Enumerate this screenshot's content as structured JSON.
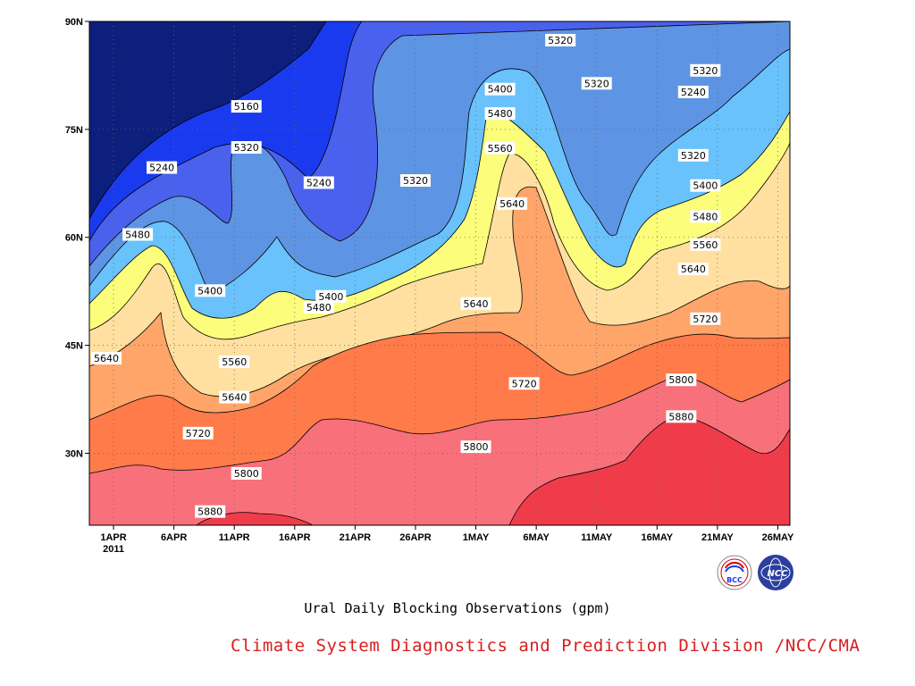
{
  "chart_data": {
    "type": "heatmap",
    "title": "Ural Daily Blocking Observations (gpm)",
    "xlabel": "",
    "ylabel": "",
    "x_ticks": [
      "1APR",
      "6APR",
      "11APR",
      "16APR",
      "21APR",
      "26APR",
      "1MAY",
      "6MAY",
      "11MAY",
      "16MAY",
      "21MAY",
      "26MAY"
    ],
    "x_year_label": "2011",
    "x_range": [
      "2011-03-30",
      "2011-05-27"
    ],
    "y_ticks": [
      "30N",
      "45N",
      "60N",
      "75N",
      "90N"
    ],
    "y_range": [
      20,
      90
    ],
    "grid": true,
    "contour_levels": [
      5160,
      5240,
      5320,
      5400,
      5480,
      5560,
      5640,
      5720,
      5800,
      5880
    ],
    "level_colors": [
      "#0d1f7c",
      "#1a3af0",
      "#4a61ee",
      "#5e94e4",
      "#69c2fb",
      "#fcfd7b",
      "#ffe0a0",
      "#ffa569",
      "#ff7b4a",
      "#f8707a",
      "#f03c4a"
    ],
    "contour_labels": [
      {
        "value": "5160",
        "date": "2011-04-12",
        "lat": 78.2
      },
      {
        "value": "5240",
        "date": "2011-04-05",
        "lat": 69.7
      },
      {
        "value": "5240",
        "date": "2011-04-18",
        "lat": 67.6
      },
      {
        "value": "5240",
        "date": "2011-05-19",
        "lat": 80.2
      },
      {
        "value": "5320",
        "date": "2011-04-12",
        "lat": 72.5
      },
      {
        "value": "5320",
        "date": "2011-04-26",
        "lat": 67.9
      },
      {
        "value": "5320",
        "date": "2011-05-08",
        "lat": 87.4
      },
      {
        "value": "5320",
        "date": "2011-05-11",
        "lat": 81.4
      },
      {
        "value": "5320",
        "date": "2011-05-19",
        "lat": 71.4
      },
      {
        "value": "5320",
        "date": "2011-05-20",
        "lat": 83.2
      },
      {
        "value": "5400",
        "date": "2011-04-09",
        "lat": 52.6
      },
      {
        "value": "5400",
        "date": "2011-04-19",
        "lat": 51.8
      },
      {
        "value": "5400",
        "date": "2011-05-03",
        "lat": 80.6
      },
      {
        "value": "5400",
        "date": "2011-05-20",
        "lat": 67.2
      },
      {
        "value": "5480",
        "date": "2011-04-03",
        "lat": 60.4
      },
      {
        "value": "5480",
        "date": "2011-04-18",
        "lat": 50.3
      },
      {
        "value": "5480",
        "date": "2011-05-03",
        "lat": 77.2
      },
      {
        "value": "5480",
        "date": "2011-05-20",
        "lat": 62.9
      },
      {
        "value": "5560",
        "date": "2011-04-11",
        "lat": 42.7
      },
      {
        "value": "5560",
        "date": "2011-05-03",
        "lat": 72.4
      },
      {
        "value": "5560",
        "date": "2011-05-20",
        "lat": 59.0
      },
      {
        "value": "5640",
        "date": "2011-03-30",
        "lat": 43.2
      },
      {
        "value": "5640",
        "date": "2011-04-11",
        "lat": 37.8
      },
      {
        "value": "5640",
        "date": "2011-05-01",
        "lat": 50.8
      },
      {
        "value": "5640",
        "date": "2011-05-04",
        "lat": 64.7
      },
      {
        "value": "5640",
        "date": "2011-05-19",
        "lat": 55.6
      },
      {
        "value": "5720",
        "date": "2011-04-08",
        "lat": 32.8
      },
      {
        "value": "5720",
        "date": "2011-05-05",
        "lat": 39.7
      },
      {
        "value": "5720",
        "date": "2011-05-20",
        "lat": 48.7
      },
      {
        "value": "5800",
        "date": "2011-04-12",
        "lat": 27.2
      },
      {
        "value": "5800",
        "date": "2011-05-01",
        "lat": 30.9
      },
      {
        "value": "5800",
        "date": "2011-05-18",
        "lat": 40.2
      },
      {
        "value": "5880",
        "date": "2011-04-09",
        "lat": 21.9
      },
      {
        "value": "5880",
        "date": "2011-05-18",
        "lat": 35.1
      }
    ]
  },
  "footer": {
    "credit": "Climate System Diagnostics and Prediction Division /NCC/CMA",
    "logos": [
      {
        "name": "bcc-logo",
        "text": "BCC"
      },
      {
        "name": "ncc-logo",
        "text": "NCC"
      }
    ]
  }
}
